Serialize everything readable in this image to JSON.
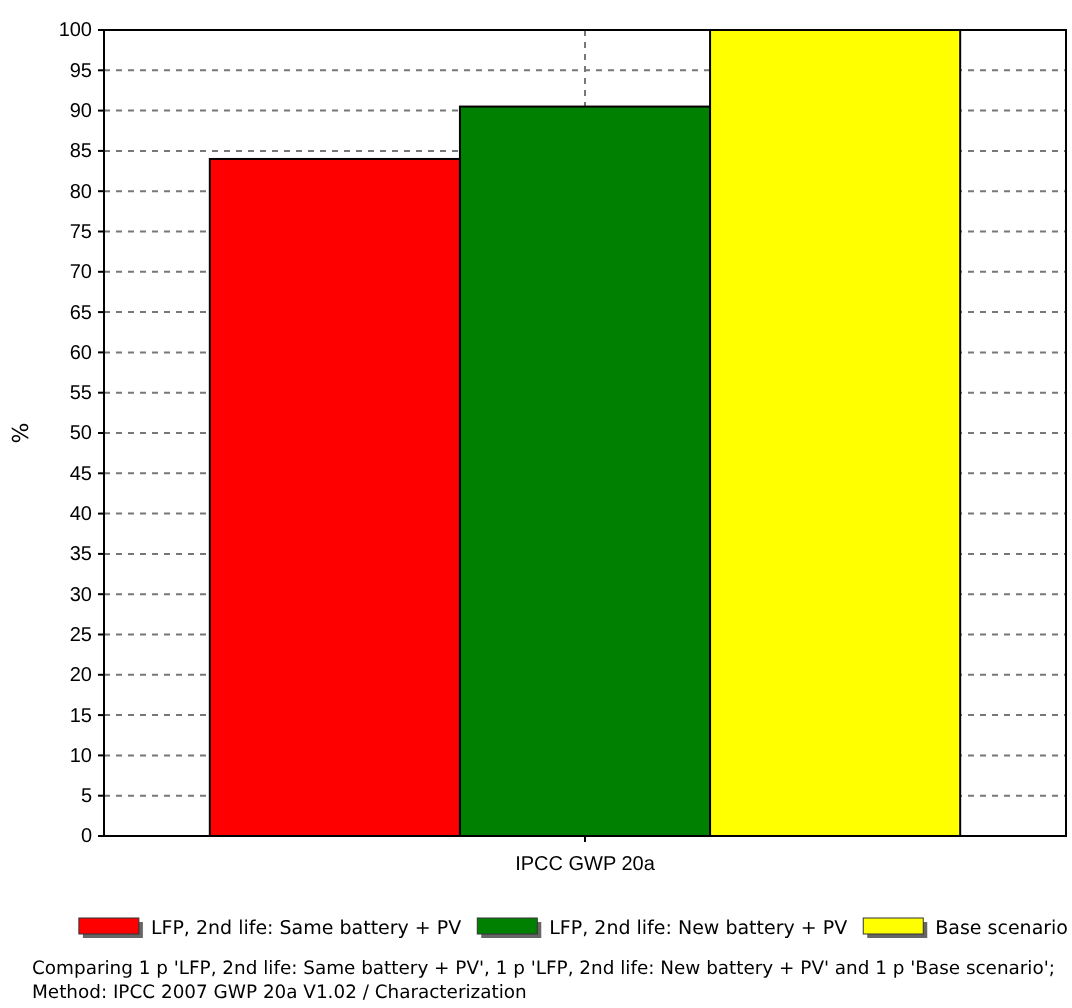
{
  "chart_data": {
    "type": "bar",
    "ylabel": "%",
    "categories": [
      "IPCC GWP 20a"
    ],
    "series": [
      {
        "name": "LFP, 2nd life: Same battery + PV",
        "color": "#ff0000",
        "values": [
          84
        ]
      },
      {
        "name": "LFP, 2nd life: New battery + PV",
        "color": "#008000",
        "values": [
          90.5
        ]
      },
      {
        "name": "Base scenario",
        "color": "#ffff00",
        "values": [
          100
        ]
      }
    ],
    "ylim": [
      0,
      100
    ],
    "yticks": [
      0,
      5,
      10,
      15,
      20,
      25,
      30,
      35,
      40,
      45,
      50,
      55,
      60,
      65,
      70,
      75,
      80,
      85,
      90,
      95,
      100
    ],
    "grid": true,
    "legend": "bottom",
    "annotations": [
      "Comparing 1 p 'LFP, 2nd life: Same battery + PV', 1 p 'LFP, 2nd life: New battery + PV' and 1 p 'Base scenario';",
      "Method: IPCC 2007 GWP 20a V1.02 / Characterization"
    ]
  }
}
